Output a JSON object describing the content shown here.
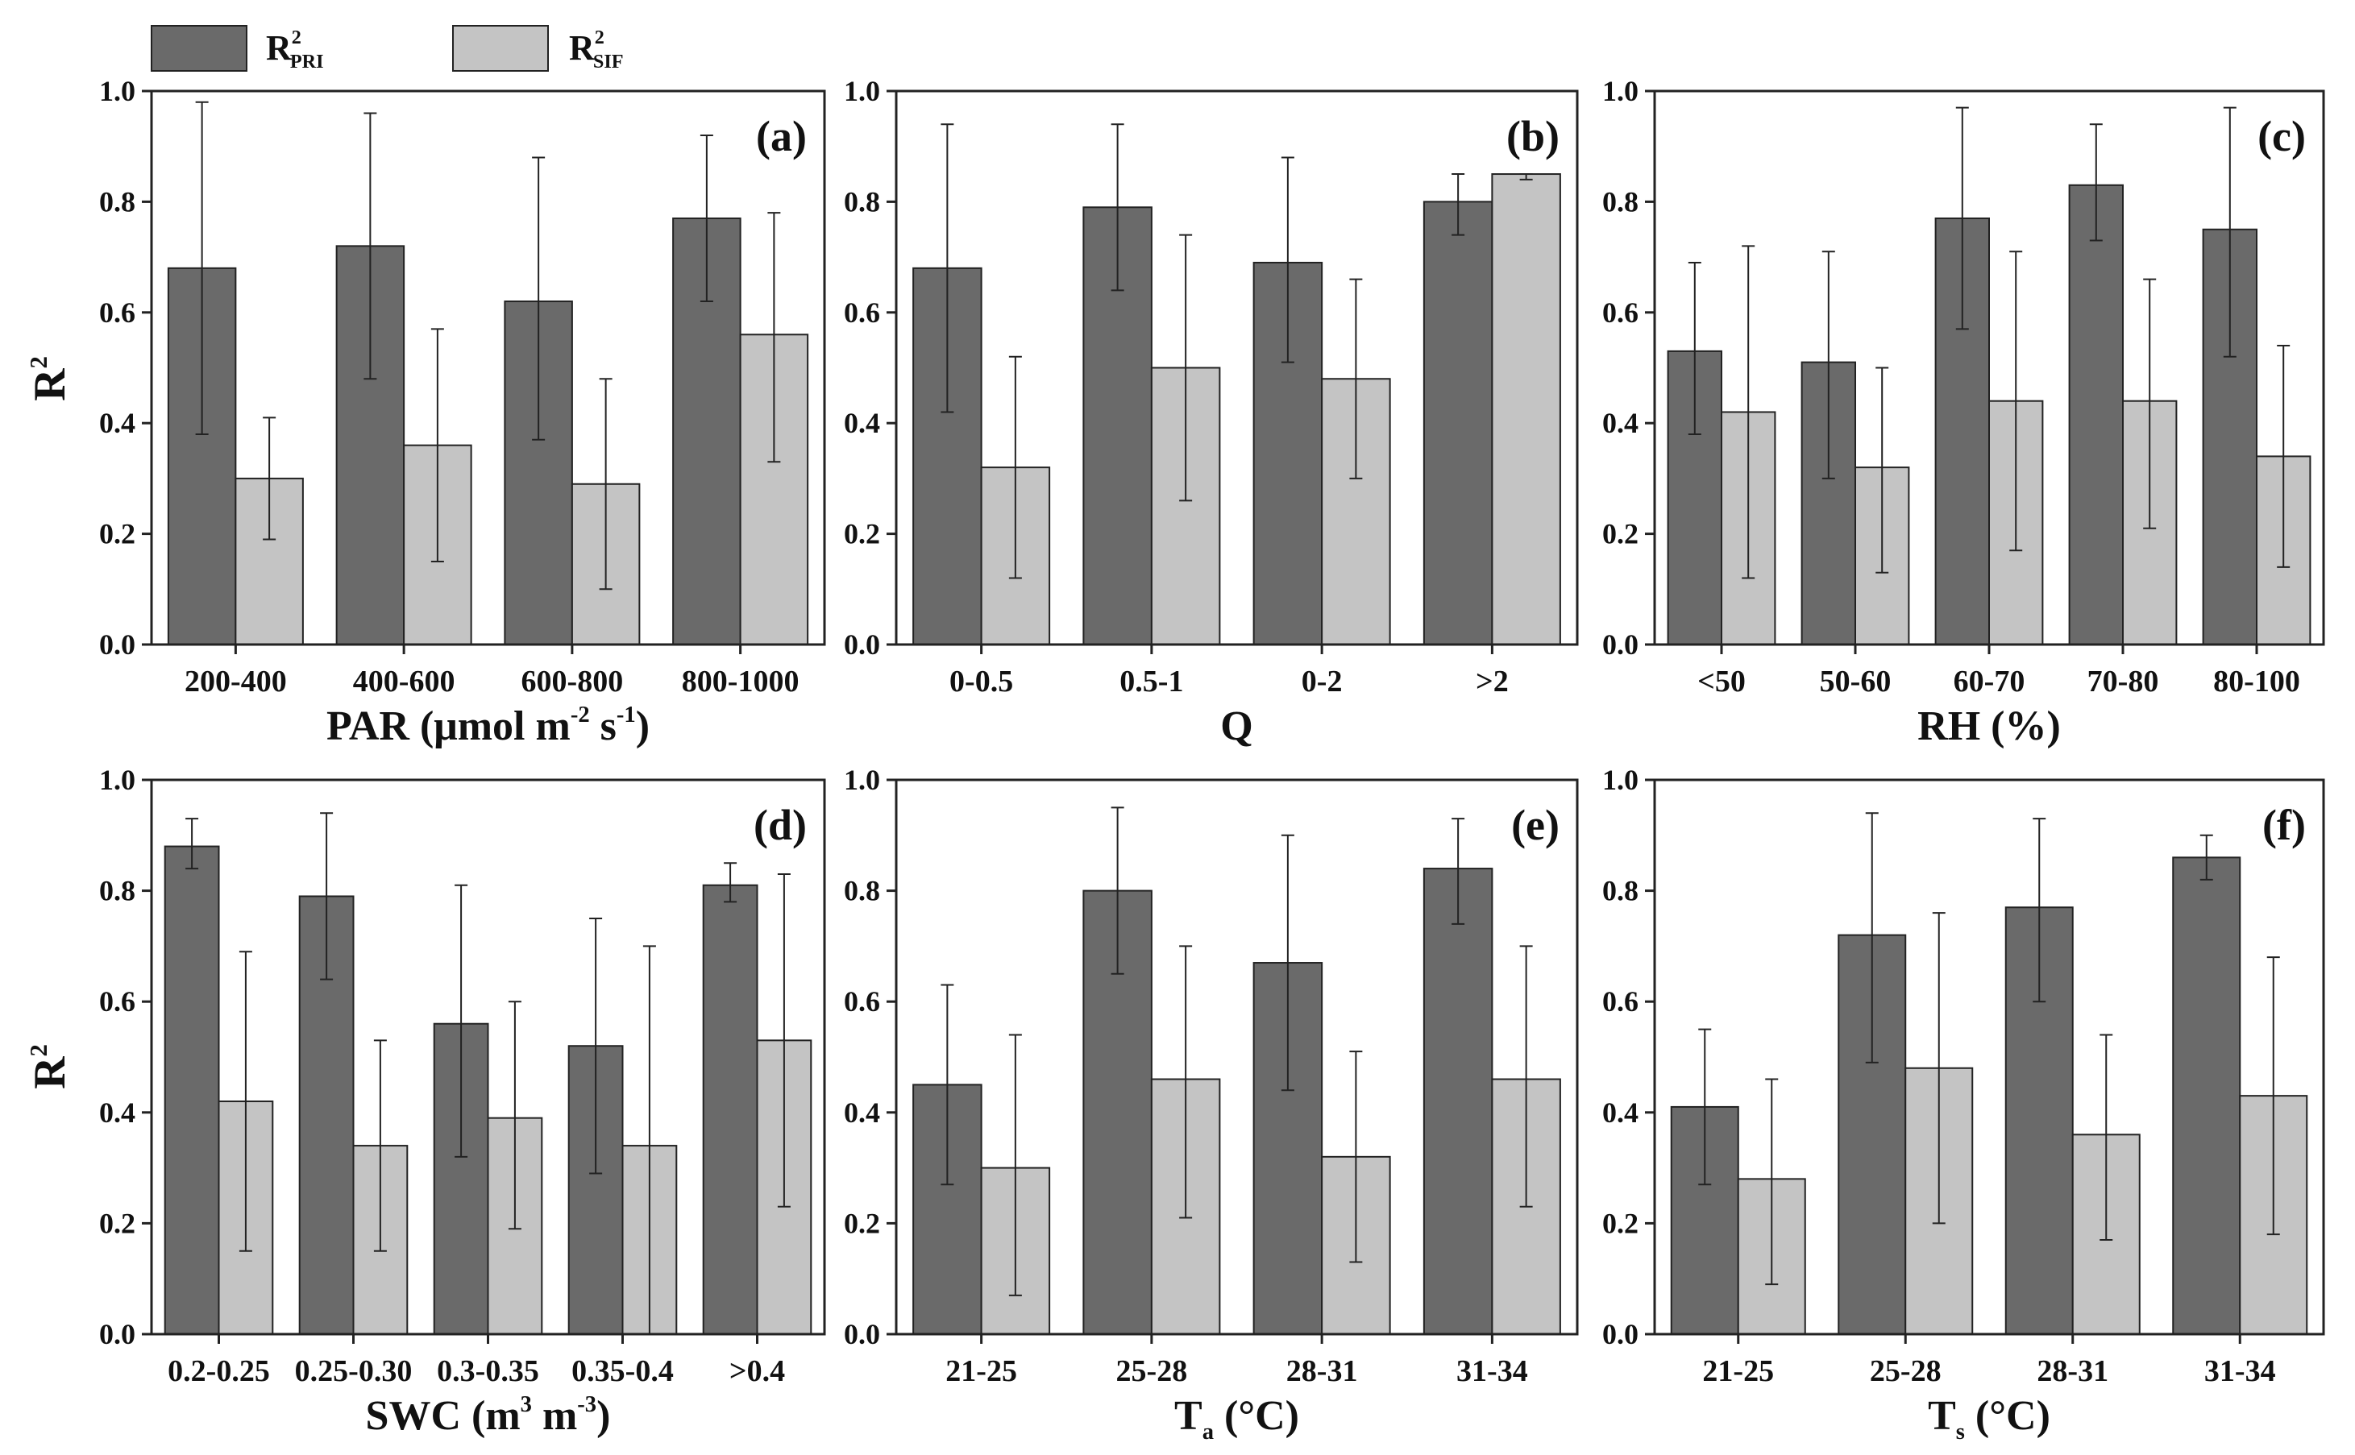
{
  "legend": {
    "pri_main": "R",
    "pri_sup": "2",
    "pri_sub": "PRI",
    "sif_main": "R",
    "sif_sup": "2",
    "sif_sub": "SIF"
  },
  "colors": {
    "pri": "#6a6a6a",
    "sif": "#c4c4c4",
    "stroke": "#222222"
  },
  "y_label": {
    "main": "R",
    "sup": "2"
  },
  "chart_data": [
    {
      "id": "a",
      "panel_label": "(a)",
      "type": "bar",
      "categories": [
        "200-400",
        "400-600",
        "600-800",
        "800-1000"
      ],
      "series": [
        {
          "name": "R2 PRI",
          "values": [
            0.68,
            0.72,
            0.62,
            0.77
          ],
          "err_low": [
            0.38,
            0.48,
            0.37,
            0.62
          ],
          "err_high": [
            0.98,
            0.96,
            0.88,
            0.92
          ]
        },
        {
          "name": "R2 SIF",
          "values": [
            0.3,
            0.36,
            0.29,
            0.56
          ],
          "err_low": [
            0.19,
            0.15,
            0.1,
            0.33
          ],
          "err_high": [
            0.41,
            0.57,
            0.48,
            0.78
          ]
        }
      ],
      "xlabel": {
        "parts": [
          {
            "t": "PAR (μmol m"
          },
          {
            "t": "-2",
            "sup": true
          },
          {
            "t": " s"
          },
          {
            "t": "-1",
            "sup": true
          },
          {
            "t": ")"
          }
        ]
      },
      "ylabel": "R2",
      "ylim": [
        0,
        1.0
      ],
      "yticks": [
        "0.0",
        "0.2",
        "0.4",
        "0.6",
        "0.8",
        "1.0"
      ]
    },
    {
      "id": "b",
      "panel_label": "(b)",
      "type": "bar",
      "categories": [
        "0-0.5",
        "0.5-1",
        "0-2",
        ">2"
      ],
      "series": [
        {
          "name": "R2 PRI",
          "values": [
            0.68,
            0.79,
            0.69,
            0.8
          ],
          "err_low": [
            0.42,
            0.64,
            0.51,
            0.74
          ],
          "err_high": [
            0.94,
            0.94,
            0.88,
            0.85
          ]
        },
        {
          "name": "R2 SIF",
          "values": [
            0.32,
            0.5,
            0.48,
            0.85
          ],
          "err_low": [
            0.12,
            0.26,
            0.3,
            0.84
          ],
          "err_high": [
            0.52,
            0.74,
            0.66,
            0.85
          ]
        }
      ],
      "xlabel": {
        "parts": [
          {
            "t": "Q"
          }
        ]
      },
      "ylabel": "",
      "ylim": [
        0,
        1.0
      ],
      "yticks": [
        "0.0",
        "0.2",
        "0.4",
        "0.6",
        "0.8",
        "1.0"
      ]
    },
    {
      "id": "c",
      "panel_label": "(c)",
      "type": "bar",
      "categories": [
        "<50",
        "50-60",
        "60-70",
        "70-80",
        "80-100"
      ],
      "series": [
        {
          "name": "R2 PRI",
          "values": [
            0.53,
            0.51,
            0.77,
            0.83,
            0.75
          ],
          "err_low": [
            0.38,
            0.3,
            0.57,
            0.73,
            0.52
          ],
          "err_high": [
            0.69,
            0.71,
            0.97,
            0.94,
            0.97
          ]
        },
        {
          "name": "R2 SIF",
          "values": [
            0.42,
            0.32,
            0.44,
            0.44,
            0.34
          ],
          "err_low": [
            0.12,
            0.13,
            0.17,
            0.21,
            0.14
          ],
          "err_high": [
            0.72,
            0.5,
            0.71,
            0.66,
            0.54
          ]
        }
      ],
      "xlabel": {
        "parts": [
          {
            "t": "RH (%)"
          }
        ]
      },
      "ylabel": "",
      "ylim": [
        0,
        1.0
      ],
      "yticks": [
        "0.0",
        "0.2",
        "0.4",
        "0.6",
        "0.8",
        "1.0"
      ]
    },
    {
      "id": "d",
      "panel_label": "(d)",
      "type": "bar",
      "categories": [
        "0.2-0.25",
        "0.25-0.30",
        "0.3-0.35",
        "0.35-0.4",
        ">0.4"
      ],
      "series": [
        {
          "name": "R2 PRI",
          "values": [
            0.88,
            0.79,
            0.56,
            0.52,
            0.81
          ],
          "err_low": [
            0.84,
            0.64,
            0.32,
            0.29,
            0.78
          ],
          "err_high": [
            0.93,
            0.94,
            0.81,
            0.75,
            0.85
          ]
        },
        {
          "name": "R2 SIF",
          "values": [
            0.42,
            0.34,
            0.39,
            0.34,
            0.53
          ],
          "err_low": [
            0.15,
            0.15,
            0.19,
            0.0,
            0.23
          ],
          "err_high": [
            0.69,
            0.53,
            0.6,
            0.7,
            0.83
          ]
        }
      ],
      "xlabel": {
        "parts": [
          {
            "t": "SWC (m"
          },
          {
            "t": "3",
            "sup": true
          },
          {
            "t": " m"
          },
          {
            "t": "-3",
            "sup": true
          },
          {
            "t": ")"
          }
        ]
      },
      "ylabel": "R2",
      "ylim": [
        0,
        1.0
      ],
      "yticks": [
        "0.0",
        "0.2",
        "0.4",
        "0.6",
        "0.8",
        "1.0"
      ]
    },
    {
      "id": "e",
      "panel_label": "(e)",
      "type": "bar",
      "categories": [
        "21-25",
        "25-28",
        "28-31",
        "31-34"
      ],
      "series": [
        {
          "name": "R2 PRI",
          "values": [
            0.45,
            0.8,
            0.67,
            0.84
          ],
          "err_low": [
            0.27,
            0.65,
            0.44,
            0.74
          ],
          "err_high": [
            0.63,
            0.95,
            0.9,
            0.93
          ]
        },
        {
          "name": "R2 SIF",
          "values": [
            0.3,
            0.46,
            0.32,
            0.46
          ],
          "err_low": [
            0.07,
            0.21,
            0.13,
            0.23
          ],
          "err_high": [
            0.54,
            0.7,
            0.51,
            0.7
          ]
        }
      ],
      "xlabel": {
        "parts": [
          {
            "t": "T"
          },
          {
            "t": "a",
            "sub": true
          },
          {
            "t": " (°C)"
          }
        ]
      },
      "ylabel": "",
      "ylim": [
        0,
        1.0
      ],
      "yticks": [
        "0.0",
        "0.2",
        "0.4",
        "0.6",
        "0.8",
        "1.0"
      ]
    },
    {
      "id": "f",
      "panel_label": "(f)",
      "type": "bar",
      "categories": [
        "21-25",
        "25-28",
        "28-31",
        "31-34"
      ],
      "series": [
        {
          "name": "R2 PRI",
          "values": [
            0.41,
            0.72,
            0.77,
            0.86
          ],
          "err_low": [
            0.27,
            0.49,
            0.6,
            0.82
          ],
          "err_high": [
            0.55,
            0.94,
            0.93,
            0.9
          ]
        },
        {
          "name": "R2 SIF",
          "values": [
            0.28,
            0.48,
            0.36,
            0.43
          ],
          "err_low": [
            0.09,
            0.2,
            0.17,
            0.18
          ],
          "err_high": [
            0.46,
            0.76,
            0.54,
            0.68
          ]
        }
      ],
      "xlabel": {
        "parts": [
          {
            "t": "T"
          },
          {
            "t": "s",
            "sub": true
          },
          {
            "t": " (°C)"
          }
        ]
      },
      "ylabel": "",
      "ylim": [
        0,
        1.0
      ],
      "yticks": [
        "0.0",
        "0.2",
        "0.4",
        "0.6",
        "0.8",
        "1.0"
      ]
    }
  ]
}
